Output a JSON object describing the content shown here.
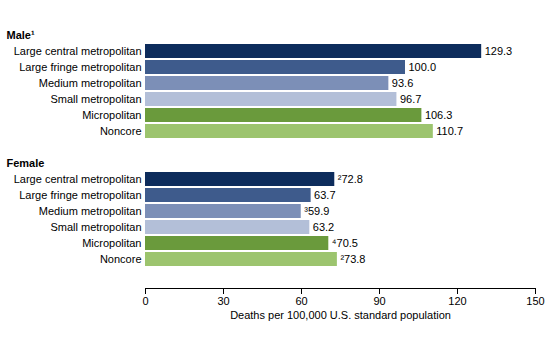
{
  "chart_data": {
    "type": "bar",
    "orientation": "horizontal",
    "categories": [
      "Large central metropolitan",
      "Large fringe metropolitan",
      "Medium metropolitan",
      "Small metropolitan",
      "Micropolitan",
      "Noncore"
    ],
    "colors": [
      "#0d2c5c",
      "#3e5b8c",
      "#7c8fb7",
      "#b3bfd8",
      "#6a9a3c",
      "#9cc46e"
    ],
    "series": [
      {
        "name": "Male¹",
        "values": [
          129.3,
          100.0,
          93.6,
          96.7,
          106.3,
          110.7
        ],
        "value_labels": [
          "129.3",
          "100.0",
          "93.6",
          "96.7",
          "106.3",
          "110.7"
        ]
      },
      {
        "name": "Female",
        "values": [
          72.8,
          63.7,
          59.9,
          63.2,
          70.5,
          73.8
        ],
        "value_labels": [
          "²72.8",
          "63.7",
          "³59.9",
          "63.2",
          "⁴70.5",
          "²73.8"
        ]
      }
    ],
    "x_label": "Deaths per 100,000 U.S. standard population",
    "xlim": [
      0,
      150
    ],
    "xticks": [
      0,
      30,
      60,
      90,
      120,
      150
    ],
    "grid": false,
    "data_labels": true
  }
}
